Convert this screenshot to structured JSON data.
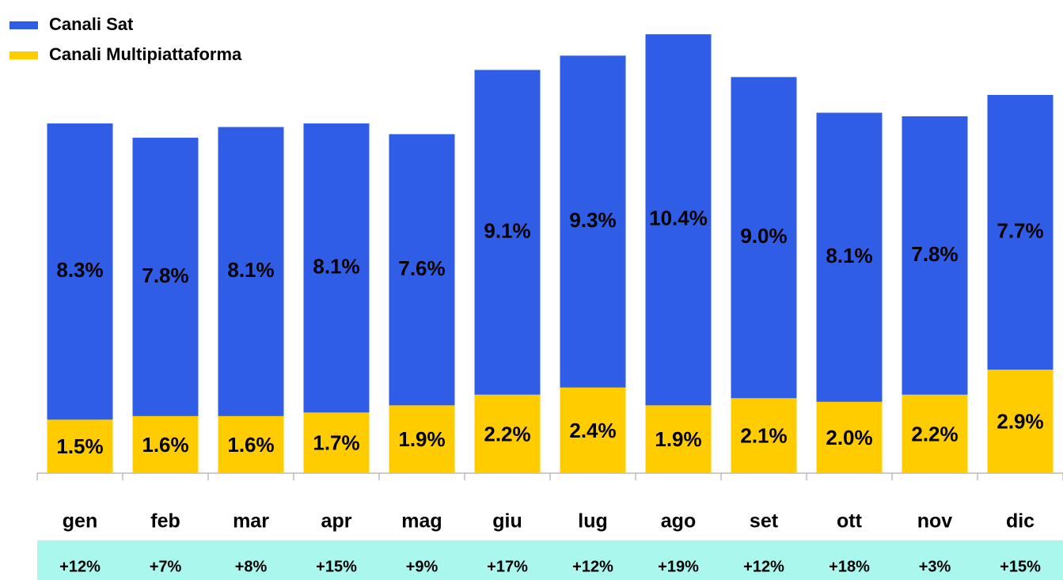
{
  "chart_data": {
    "type": "bar",
    "stacked": true,
    "categories": [
      "gen",
      "feb",
      "mar",
      "apr",
      "mag",
      "giu",
      "lug",
      "ago",
      "set",
      "ott",
      "nov",
      "dic"
    ],
    "series": [
      {
        "name": "Canali Multipiattaforma",
        "color": "#ffcc00",
        "values": [
          1.5,
          1.6,
          1.6,
          1.7,
          1.9,
          2.2,
          2.4,
          1.9,
          2.1,
          2.0,
          2.2,
          2.9
        ],
        "value_labels": [
          "1.5%",
          "1.6%",
          "1.6%",
          "1.7%",
          "1.9%",
          "2.2%",
          "2.4%",
          "1.9%",
          "2.1%",
          "2.0%",
          "2.2%",
          "2.9%"
        ]
      },
      {
        "name": "Canali Sat",
        "color": "#2f5de6",
        "values": [
          8.3,
          7.8,
          8.1,
          8.1,
          7.6,
          9.1,
          9.3,
          10.4,
          9.0,
          8.1,
          7.8,
          7.7
        ],
        "value_labels": [
          "8.3%",
          "7.8%",
          "8.1%",
          "8.1%",
          "7.6%",
          "9.1%",
          "9.3%",
          "10.4%",
          "9.0%",
          "8.1%",
          "7.8%",
          "7.7%"
        ]
      }
    ],
    "growth": [
      "+12%",
      "+7%",
      "+8%",
      "+15%",
      "+9%",
      "+17%",
      "+12%",
      "+19%",
      "+12%",
      "+18%",
      "+3%",
      "+15%"
    ],
    "ylim": [
      0,
      13
    ],
    "legend": "top-left"
  }
}
